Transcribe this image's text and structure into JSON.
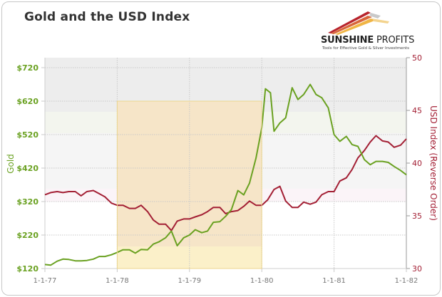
{
  "header": {
    "title": "Gold and the USD Index"
  },
  "logo": {
    "name_bold": "SUNSHINE",
    "name_regular": " PROFITS",
    "tagline": "Tools for Effective Gold & Silver Investments"
  },
  "colors": {
    "gold_line": "#6aa121",
    "usd_line": "#a31f34",
    "highlight_fill": "#f8e9c4",
    "grid": "#cccccc"
  },
  "chart_data": {
    "type": "line",
    "title": "Gold and the USD Index",
    "xlabel": "",
    "ylabel": "Gold",
    "y2label": "USD Index (Reverse Order)",
    "x_ticks": [
      "1-1-77",
      "1-1-78",
      "1-1-79",
      "1-1-80",
      "1-1-81",
      "1-1-82"
    ],
    "y_ticks": [
      "$120",
      "$220",
      "$320",
      "$420",
      "$520",
      "$620",
      "$720"
    ],
    "y2_ticks": [
      "30",
      "35",
      "40",
      "45",
      "50"
    ],
    "ylim": [
      120,
      750
    ],
    "y2lim": [
      30,
      50
    ],
    "grid": true,
    "legend": "none",
    "highlight_range": {
      "start": 1978.0,
      "end": 1980.0,
      "label": "shaded period 1978-1980"
    },
    "series": [
      {
        "name": "Gold",
        "axis": "left",
        "x": [
          1977.0,
          1977.08,
          1977.17,
          1977.25,
          1977.33,
          1977.42,
          1977.5,
          1977.58,
          1977.67,
          1977.75,
          1977.83,
          1977.92,
          1978.0,
          1978.08,
          1978.17,
          1978.25,
          1978.33,
          1978.42,
          1978.5,
          1978.58,
          1978.67,
          1978.75,
          1978.83,
          1978.92,
          1979.0,
          1979.08,
          1979.17,
          1979.25,
          1979.33,
          1979.42,
          1979.5,
          1979.58,
          1979.67,
          1979.75,
          1979.83,
          1979.92,
          1980.0,
          1980.05,
          1980.12,
          1980.17,
          1980.25,
          1980.33,
          1980.42,
          1980.5,
          1980.58,
          1980.67,
          1980.75,
          1980.83,
          1980.92,
          1981.0,
          1981.08,
          1981.17,
          1981.25,
          1981.33,
          1981.42,
          1981.5,
          1981.58,
          1981.67,
          1981.75,
          1981.83,
          1981.92,
          1982.0
        ],
        "values": [
          132,
          130,
          142,
          148,
          147,
          143,
          143,
          144,
          148,
          156,
          156,
          161,
          168,
          176,
          176,
          166,
          177,
          176,
          193,
          200,
          212,
          232,
          188,
          212,
          220,
          236,
          227,
          232,
          258,
          260,
          276,
          296,
          353,
          340,
          375,
          450,
          540,
          657,
          645,
          530,
          555,
          570,
          660,
          625,
          640,
          670,
          640,
          630,
          600,
          520,
          500,
          515,
          490,
          485,
          445,
          430,
          440,
          440,
          437,
          425,
          413,
          400
        ]
      },
      {
        "name": "USD Index (Reverse Order)",
        "axis": "right",
        "x": [
          1977.0,
          1977.08,
          1977.17,
          1977.25,
          1977.33,
          1977.42,
          1977.5,
          1977.58,
          1977.67,
          1977.75,
          1977.83,
          1977.92,
          1978.0,
          1978.08,
          1978.17,
          1978.25,
          1978.33,
          1978.42,
          1978.5,
          1978.58,
          1978.67,
          1978.75,
          1978.83,
          1978.92,
          1979.0,
          1979.08,
          1979.17,
          1979.25,
          1979.33,
          1979.42,
          1979.5,
          1979.58,
          1979.67,
          1979.75,
          1979.83,
          1979.92,
          1980.0,
          1980.08,
          1980.17,
          1980.25,
          1980.33,
          1980.42,
          1980.5,
          1980.58,
          1980.67,
          1980.75,
          1980.83,
          1980.92,
          1981.0,
          1981.08,
          1981.17,
          1981.25,
          1981.33,
          1981.42,
          1981.5,
          1981.58,
          1981.67,
          1981.75,
          1981.83,
          1981.92,
          1982.0
        ],
        "values": [
          37.0,
          37.2,
          37.3,
          37.2,
          37.3,
          37.3,
          36.9,
          37.3,
          37.4,
          37.1,
          36.8,
          36.2,
          36.0,
          36.0,
          35.7,
          35.7,
          36.0,
          35.4,
          34.6,
          34.2,
          34.2,
          33.6,
          34.5,
          34.7,
          34.7,
          34.9,
          35.1,
          35.4,
          35.8,
          35.8,
          35.2,
          35.4,
          35.5,
          35.9,
          36.4,
          36.0,
          36.0,
          36.5,
          37.5,
          37.8,
          36.4,
          35.8,
          35.8,
          36.3,
          36.1,
          36.3,
          37.0,
          37.3,
          37.3,
          38.3,
          38.6,
          39.4,
          40.5,
          41.2,
          42.0,
          42.6,
          42.1,
          42.0,
          41.5,
          41.7,
          42.3
        ]
      }
    ]
  }
}
